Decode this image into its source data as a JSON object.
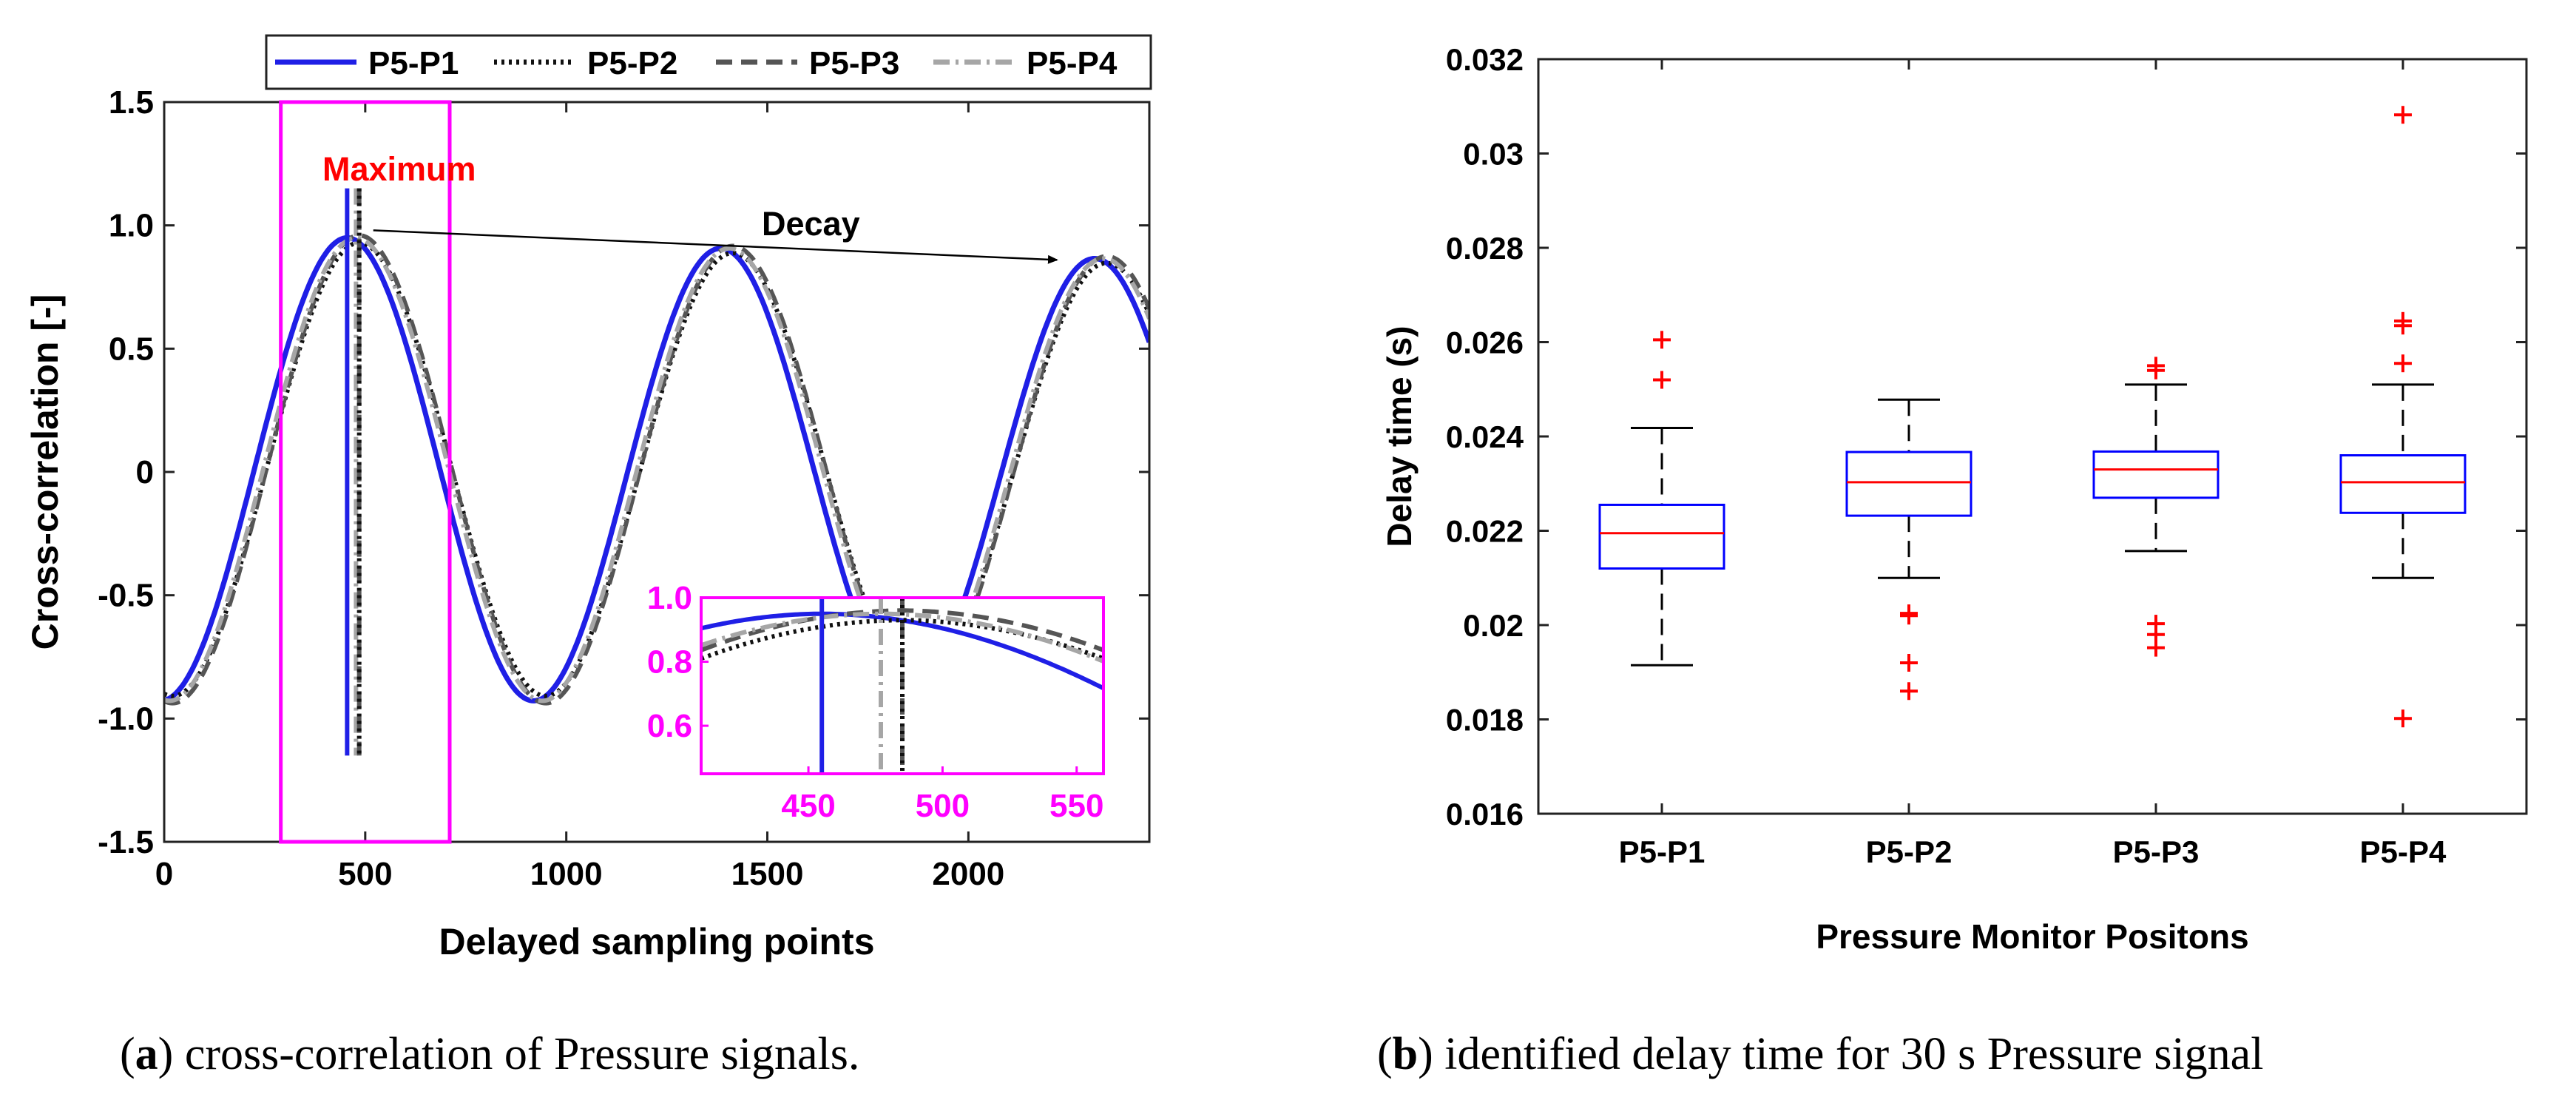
{
  "figure_a": {
    "caption_label": "a",
    "caption_text": " cross-correlation of Pressure signals."
  },
  "figure_b": {
    "caption_label": "b",
    "caption_text": " identified delay time for 30 s Pressure signal"
  },
  "chart_data": [
    {
      "type": "line",
      "title": "",
      "xlabel": "Delayed sampling points",
      "ylabel": "Cross-correlation [-]",
      "xlim": [
        0,
        2450
      ],
      "ylim": [
        -1.5,
        1.5
      ],
      "xticks": [
        0,
        500,
        1000,
        1500,
        2000
      ],
      "yticks": [
        -1.5,
        -1.0,
        -0.5,
        0,
        0.5,
        1.0,
        1.5
      ],
      "xtick_labels": [
        "0",
        "500",
        "1000",
        "1500",
        "2000"
      ],
      "ytick_labels": [
        "-1.5",
        "-1.0",
        "-0.5",
        "0",
        "0.5",
        "1.0",
        "1.5"
      ],
      "legend_position": "top",
      "series": [
        {
          "name": "P5-P1",
          "color": "#1f1fe6",
          "style": "solid",
          "peak_lag": 455,
          "period": 930,
          "amplitude": 0.95,
          "decay": 5e-05
        },
        {
          "name": "P5-P2",
          "color": "#111111",
          "style": "dotted",
          "peak_lag": 485,
          "period": 930,
          "amplitude": 0.93,
          "decay": 5e-05
        },
        {
          "name": "P5-P3",
          "color": "#555555",
          "style": "dashed",
          "peak_lag": 485,
          "period": 930,
          "amplitude": 0.96,
          "decay": 5e-05
        },
        {
          "name": "P5-P4",
          "color": "#a6a6a6",
          "style": "dashdot",
          "peak_lag": 477,
          "period": 930,
          "amplitude": 0.95,
          "decay": 5e-05
        }
      ],
      "maximum_markers": [
        {
          "series": "P5-P1",
          "x": 455
        },
        {
          "series": "P5-P4",
          "x": 477
        },
        {
          "series": "P5-P3",
          "x": 485
        },
        {
          "series": "P5-P2",
          "x": 485
        }
      ],
      "marker_range": [
        -1.15,
        1.15
      ],
      "highlight_box": {
        "x_range": [
          290,
          710
        ],
        "y_range": [
          -1.5,
          1.5
        ],
        "color": "#ff00ff"
      },
      "annotations": [
        {
          "text": "Maximum",
          "color": "#ff0000"
        },
        {
          "text": "Decay",
          "color": "#000000",
          "arrow_from": [
            520,
            0.98
          ],
          "arrow_to": [
            2220,
            0.86
          ]
        }
      ],
      "inset": {
        "xlim": [
          410,
          560
        ],
        "ylim": [
          0.45,
          1.0
        ],
        "xticks": [
          450,
          500,
          550
        ],
        "yticks": [
          0.6,
          0.8,
          1.0
        ],
        "xtick_labels": [
          "450",
          "500",
          "550"
        ],
        "ytick_labels": [
          "0.6",
          "0.8",
          "1.0"
        ],
        "color": "#ff00ff"
      }
    },
    {
      "type": "box",
      "title": "",
      "xlabel": "Pressure Monitor Positons",
      "ylabel": "Delay time (s)",
      "ylim": [
        0.016,
        0.032
      ],
      "yticks": [
        0.016,
        0.018,
        0.02,
        0.022,
        0.024,
        0.026,
        0.028,
        0.03,
        0.032
      ],
      "ytick_labels": [
        "0.016",
        "0.018",
        "0.02",
        "0.022",
        "0.024",
        "0.026",
        "0.028",
        "0.03",
        "0.032"
      ],
      "categories": [
        "P5-P1",
        "P5-P2",
        "P5-P3",
        "P5-P4"
      ],
      "boxes": [
        {
          "name": "P5-P1",
          "whisker_low": 0.01915,
          "q1": 0.0212,
          "median": 0.02195,
          "q3": 0.02255,
          "whisker_high": 0.02418,
          "outliers": [
            0.02605,
            0.0252
          ]
        },
        {
          "name": "P5-P2",
          "whisker_low": 0.021,
          "q1": 0.02232,
          "median": 0.02303,
          "q3": 0.02367,
          "whisker_high": 0.02478,
          "outliers": [
            0.02025,
            0.0202,
            0.0192,
            0.0186
          ]
        },
        {
          "name": "P5-P3",
          "whisker_low": 0.02157,
          "q1": 0.0227,
          "median": 0.0233,
          "q3": 0.02368,
          "whisker_high": 0.0251,
          "outliers": [
            0.0255,
            0.0254,
            0.02003,
            0.0198,
            0.01952
          ]
        },
        {
          "name": "P5-P4",
          "whisker_low": 0.021,
          "q1": 0.02238,
          "median": 0.02303,
          "q3": 0.0236,
          "whisker_high": 0.0251,
          "outliers": [
            0.03082,
            0.02645,
            0.02635,
            0.02555,
            0.01802
          ]
        }
      ],
      "box_color": "#0000ff",
      "median_color": "#ff0000",
      "outlier_color": "#ff0000",
      "outlier_marker": "+"
    }
  ]
}
